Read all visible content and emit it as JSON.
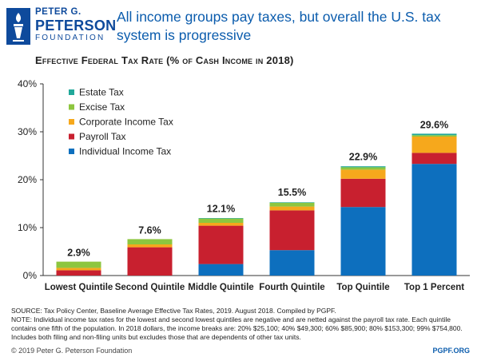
{
  "header": {
    "org_line1": "PETER G.",
    "org_line2": "PETERSON",
    "org_line3": "FOUNDATION",
    "headline": "All income groups pay taxes, but overall the U.S. tax system is progressive",
    "subtitle": "Effective Federal Tax Rate (% of Cash Income in 2018)"
  },
  "colors": {
    "estate": "#21a89a",
    "excise": "#8dc63f",
    "corporate": "#f6a81c",
    "payroll": "#c8202f",
    "individual": "#0d6fbe",
    "brand": "#0b5cad"
  },
  "chart_data": {
    "type": "bar",
    "stacked": true,
    "categories": [
      "Lowest Quintile",
      "Second Quintile",
      "Middle Quintile",
      "Fourth Quintile",
      "Top Quintile",
      "Top 1 Percent"
    ],
    "totals": [
      2.9,
      7.6,
      12.1,
      15.5,
      22.9,
      29.6
    ],
    "total_labels": [
      "2.9%",
      "7.6%",
      "12.1%",
      "15.5%",
      "22.9%",
      "29.6%"
    ],
    "series": [
      {
        "name": "Individual Income Tax",
        "key": "individual",
        "values": [
          0,
          0,
          2.4,
          5.3,
          14.3,
          23.3
        ]
      },
      {
        "name": "Payroll Tax",
        "key": "payroll",
        "values": [
          1.1,
          5.9,
          8.0,
          8.3,
          5.9,
          2.3
        ]
      },
      {
        "name": "Corporate Income Tax",
        "key": "corporate",
        "values": [
          0.5,
          0.6,
          0.6,
          0.8,
          1.9,
          3.4
        ]
      },
      {
        "name": "Excise Tax",
        "key": "excise",
        "values": [
          1.3,
          1.1,
          0.9,
          0.8,
          0.5,
          0.3
        ]
      },
      {
        "name": "Estate Tax",
        "key": "estate",
        "values": [
          0,
          0,
          0.1,
          0.1,
          0.2,
          0.3
        ]
      }
    ],
    "legend_order": [
      "Estate Tax",
      "Excise Tax",
      "Corporate Income Tax",
      "Payroll Tax",
      "Individual Income Tax"
    ],
    "legend_keys": [
      "estate",
      "excise",
      "corporate",
      "payroll",
      "individual"
    ],
    "ylim": [
      0,
      40
    ],
    "yticks": [
      0,
      10,
      20,
      30,
      40
    ],
    "ytick_labels": [
      "0%",
      "10%",
      "20%",
      "30%",
      "40%"
    ],
    "legend_position": "top-left",
    "grid": false
  },
  "footer": {
    "source": "SOURCE: Tax Policy Center, Baseline Average Effective Tax Rates, 2019. August 2018. Compiled by PGPF.",
    "note": "NOTE: Individual income tax rates for the lowest and second lowest quintiles are negative and are netted against the payroll tax rate. Each quintile contains one fifth of the population. In 2018 dollars, the income breaks are: 20% $25,100; 40% $49,300; 60% $85,900; 80% $153,300; 99% $754,800. Includes both filing and non-filing units but excludes those that are dependents of other tax units.",
    "copyright": "© 2019 Peter G. Peterson Foundation",
    "url": "PGPF.ORG"
  }
}
